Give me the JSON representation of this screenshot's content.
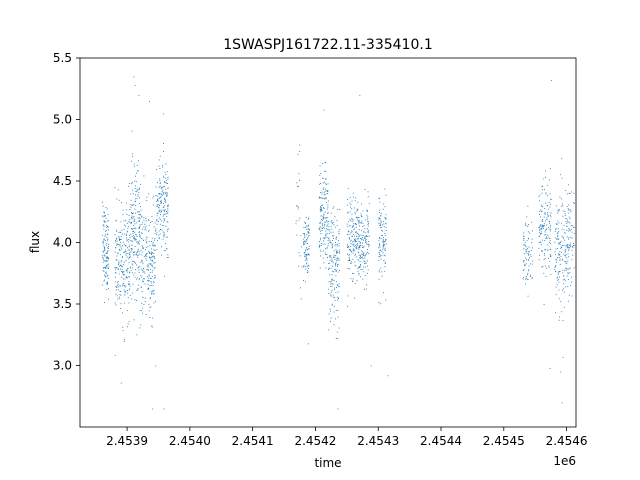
{
  "chart_data": {
    "type": "scatter",
    "title": "1SWASPJ161722.11-335410.1",
    "xlabel": "time",
    "ylabel": "flux",
    "x_offset_label": "1e6",
    "xlim": [
      2453825,
      2454615
    ],
    "ylim": [
      2.5,
      5.5
    ],
    "x_ticks": [
      2453900,
      2454000,
      2454100,
      2454200,
      2454300,
      2454400,
      2454500,
      2454600
    ],
    "x_tick_labels": [
      "2.4539",
      "2.4540",
      "2.4541",
      "2.4542",
      "2.4543",
      "2.4544",
      "2.4545",
      "2.4546"
    ],
    "y_ticks": [
      3.0,
      3.5,
      4.0,
      4.5,
      5.0,
      5.5
    ],
    "y_tick_labels": [
      "3.0",
      "3.5",
      "4.0",
      "4.5",
      "5.0",
      "5.5"
    ],
    "grid": false,
    "marker_color": "#1f77b4",
    "clusters": [
      {
        "x": [
          2453860,
          2453870
        ],
        "y_center": 3.95,
        "y_spread": 0.18,
        "n": 130
      },
      {
        "x": [
          2453880,
          2453905
        ],
        "y_center": 3.85,
        "y_spread": 0.22,
        "n": 230
      },
      {
        "x": [
          2453905,
          2453922
        ],
        "y_center": 4.05,
        "y_spread": 0.28,
        "n": 200
      },
      {
        "x": [
          2453922,
          2453945
        ],
        "y_center": 3.85,
        "y_spread": 0.22,
        "n": 200
      },
      {
        "x": [
          2453945,
          2453965
        ],
        "y_center": 4.3,
        "y_spread": 0.2,
        "n": 180
      },
      {
        "x": [
          2454168,
          2454178
        ],
        "y_center": 4.2,
        "y_spread": 0.25,
        "n": 25
      },
      {
        "x": [
          2454180,
          2454190
        ],
        "y_center": 3.95,
        "y_spread": 0.14,
        "n": 90
      },
      {
        "x": [
          2454205,
          2454220
        ],
        "y_center": 4.2,
        "y_spread": 0.2,
        "n": 160
      },
      {
        "x": [
          2454220,
          2454238
        ],
        "y_center": 3.8,
        "y_spread": 0.22,
        "n": 170
      },
      {
        "x": [
          2454250,
          2454268
        ],
        "y_center": 4.05,
        "y_spread": 0.17,
        "n": 160
      },
      {
        "x": [
          2454268,
          2454285
        ],
        "y_center": 4.0,
        "y_spread": 0.16,
        "n": 150
      },
      {
        "x": [
          2454300,
          2454312
        ],
        "y_center": 4.0,
        "y_spread": 0.2,
        "n": 110
      },
      {
        "x": [
          2454530,
          2454545
        ],
        "y_center": 3.9,
        "y_spread": 0.16,
        "n": 80
      },
      {
        "x": [
          2454555,
          2454575
        ],
        "y_center": 4.1,
        "y_spread": 0.2,
        "n": 150
      },
      {
        "x": [
          2454580,
          2454600
        ],
        "y_center": 3.9,
        "y_spread": 0.25,
        "n": 150
      },
      {
        "x": [
          2454600,
          2454612
        ],
        "y_center": 4.05,
        "y_spread": 0.2,
        "n": 80
      }
    ],
    "outliers": [
      [
        2453910,
        5.35
      ],
      [
        2453912,
        5.28
      ],
      [
        2453918,
        5.2
      ],
      [
        2453935,
        5.15
      ],
      [
        2453940,
        2.65
      ],
      [
        2453958,
        2.65
      ],
      [
        2453890,
        2.86
      ],
      [
        2453957,
        5.05
      ],
      [
        2454213,
        5.08
      ],
      [
        2454188,
        3.18
      ],
      [
        2454235,
        2.65
      ],
      [
        2454270,
        5.2
      ],
      [
        2454315,
        2.92
      ],
      [
        2454575,
        5.32
      ],
      [
        2454592,
        2.7
      ],
      [
        2454590,
        2.95
      ],
      [
        2454573,
        2.98
      ],
      [
        2454288,
        3.0
      ],
      [
        2453945,
        3.0
      ],
      [
        2453895,
        3.2
      ]
    ]
  }
}
